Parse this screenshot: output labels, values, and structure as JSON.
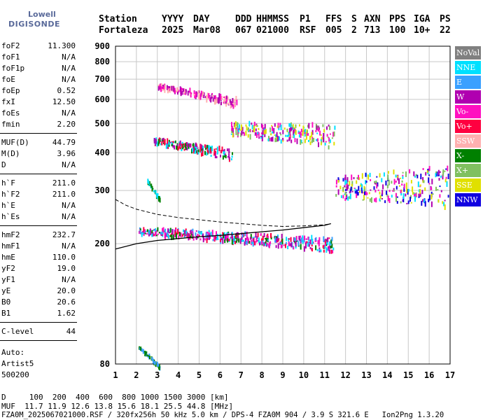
{
  "logo": {
    "line1": "Lowell",
    "line2": "DIGISONDE"
  },
  "header": {
    "columns": [
      {
        "label": "Station",
        "value": "Fortaleza"
      },
      {
        "label": "YYYY",
        "value": "2025"
      },
      {
        "label": "DAY",
        "value": "Mar08"
      },
      {
        "label": "DDD",
        "value": "067"
      },
      {
        "label": "HHMMSS",
        "value": "021000"
      },
      {
        "label": "P1",
        "value": "RSF"
      },
      {
        "label": "FFS",
        "value": "005"
      },
      {
        "label": "S",
        "value": "2"
      },
      {
        "label": "AXN",
        "value": "713"
      },
      {
        "label": "PPS",
        "value": "100"
      },
      {
        "label": "IGA",
        "value": "10+"
      },
      {
        "label": "PS",
        "value": "22"
      }
    ]
  },
  "params": {
    "group1": [
      {
        "name": "foF2",
        "value": "11.300"
      },
      {
        "name": "foF1",
        "value": "N/A"
      },
      {
        "name": "foF1p",
        "value": "N/A"
      },
      {
        "name": "foE",
        "value": "N/A"
      },
      {
        "name": "foEp",
        "value": "0.52"
      },
      {
        "name": "fxI",
        "value": "12.50"
      },
      {
        "name": "foEs",
        "value": "N/A"
      },
      {
        "name": "fmin",
        "value": "2.20"
      }
    ],
    "group2": [
      {
        "name": "MUF(D)",
        "value": "44.79"
      },
      {
        "name": "M(D)",
        "value": "3.96"
      },
      {
        "name": "D",
        "value": "N/A"
      }
    ],
    "group3": [
      {
        "name": "h`F",
        "value": "211.0"
      },
      {
        "name": "h`F2",
        "value": "211.0"
      },
      {
        "name": "h`E",
        "value": "N/A"
      },
      {
        "name": "h`Es",
        "value": "N/A"
      }
    ],
    "group4": [
      {
        "name": "hmF2",
        "value": "232.7"
      },
      {
        "name": "hmF1",
        "value": "N/A"
      },
      {
        "name": "hmE",
        "value": "110.0"
      },
      {
        "name": "yF2",
        "value": "19.0"
      },
      {
        "name": "yF1",
        "value": "N/A"
      },
      {
        "name": "yE",
        "value": "20.0"
      },
      {
        "name": "B0",
        "value": "20.6"
      },
      {
        "name": "B1",
        "value": "1.62"
      }
    ],
    "group5": [
      {
        "name": "C-level",
        "value": "44"
      }
    ],
    "autoscale": [
      "Auto:",
      "Artist5",
      "500200"
    ]
  },
  "legend": [
    {
      "label": "NoVal",
      "color": "#808080"
    },
    {
      "label": "NNE",
      "color": "#00e0ff"
    },
    {
      "label": "E",
      "color": "#3aa0ff"
    },
    {
      "label": "W",
      "color": "#b000b0"
    },
    {
      "label": "Vo-",
      "color": "#ff10c0"
    },
    {
      "label": "Vo+",
      "color": "#ff0040"
    },
    {
      "label": "SSW",
      "color": "#ffb0b0"
    },
    {
      "label": "X-",
      "color": "#008000"
    },
    {
      "label": "X+",
      "color": "#80c060"
    },
    {
      "label": "SSE",
      "color": "#e0e000"
    },
    {
      "label": "NNW",
      "color": "#1000e0"
    }
  ],
  "footer": {
    "line1": "D     100  200  400  600  800 1000 1500 3000 [km]",
    "line2": "MUF  11.7 11.9 12.6 13.8 15.6 18.1 25.5 44.8 [MHz]",
    "line3": "FZA0M_2025067021000.RSF / 320fx256h 50 kHz 5.0 km / DPS-4 FZA0M 904 / 3.9 S 321.6 E   Ion2Png 1.3.20"
  },
  "chart_data": {
    "type": "scatter",
    "title": "",
    "xlabel": "",
    "ylabel": "",
    "xlim": [
      1,
      17
    ],
    "ylim": [
      80,
      900
    ],
    "yscale": "log",
    "xticks": [
      1,
      2,
      3,
      4,
      5,
      6,
      7,
      8,
      9,
      10,
      11,
      12,
      13,
      14,
      15,
      16,
      17
    ],
    "yticks": [
      80,
      200,
      300,
      400,
      500,
      600,
      700,
      800,
      900
    ],
    "grid": true,
    "legend_position": "right",
    "trace_clusters": [
      {
        "x": [
          2.1,
          11.4
        ],
        "y": [
          210,
          240
        ],
        "colors": [
          "W",
          "Vo+",
          "NNE",
          "E",
          "Vo-",
          "X-"
        ]
      },
      {
        "x": [
          2.8,
          6.6
        ],
        "y": [
          422,
          470
        ],
        "colors": [
          "Vo+",
          "W",
          "X-",
          "NNE"
        ]
      },
      {
        "x": [
          3.0,
          6.8
        ],
        "y": [
          640,
          700
        ],
        "colors": [
          "W",
          "Vo-",
          "SSW"
        ]
      },
      {
        "x": [
          6.5,
          11.5
        ],
        "y": [
          440,
          560
        ],
        "colors": [
          "W",
          "Vo-",
          "NNE",
          "X+",
          "SSE"
        ]
      },
      {
        "x": [
          11.5,
          16.9
        ],
        "y": [
          260,
          400
        ],
        "colors": [
          "W",
          "NNW",
          "Vo-",
          "NNE",
          "X+",
          "SSE"
        ]
      },
      {
        "x": [
          2.5,
          3.1
        ],
        "y": [
          318,
          330
        ],
        "colors": [
          "X-",
          "NNE"
        ]
      },
      {
        "x": [
          2.1,
          3.1
        ],
        "y": [
          90,
          92
        ],
        "colors": [
          "X-",
          "E"
        ]
      }
    ],
    "profile_curve": {
      "x": [
        1.0,
        2.0,
        3.0,
        4.0,
        5.0,
        6.0,
        7.0,
        8.0,
        9.0,
        10.0,
        11.0,
        11.3
      ],
      "y": [
        192,
        200,
        205,
        208,
        211,
        213,
        216,
        219,
        222,
        226,
        230,
        233
      ]
    },
    "upper_curve": {
      "x": [
        1.0,
        1.5,
        2.0,
        2.5,
        3.0,
        3.5,
        4.0,
        5.0,
        6.0,
        7.0,
        8.0,
        9.0,
        10.0,
        11.0,
        11.3
      ],
      "y": [
        280,
        268,
        260,
        255,
        250,
        247,
        244,
        240,
        236,
        233,
        230,
        228,
        229,
        231,
        233
      ]
    }
  }
}
